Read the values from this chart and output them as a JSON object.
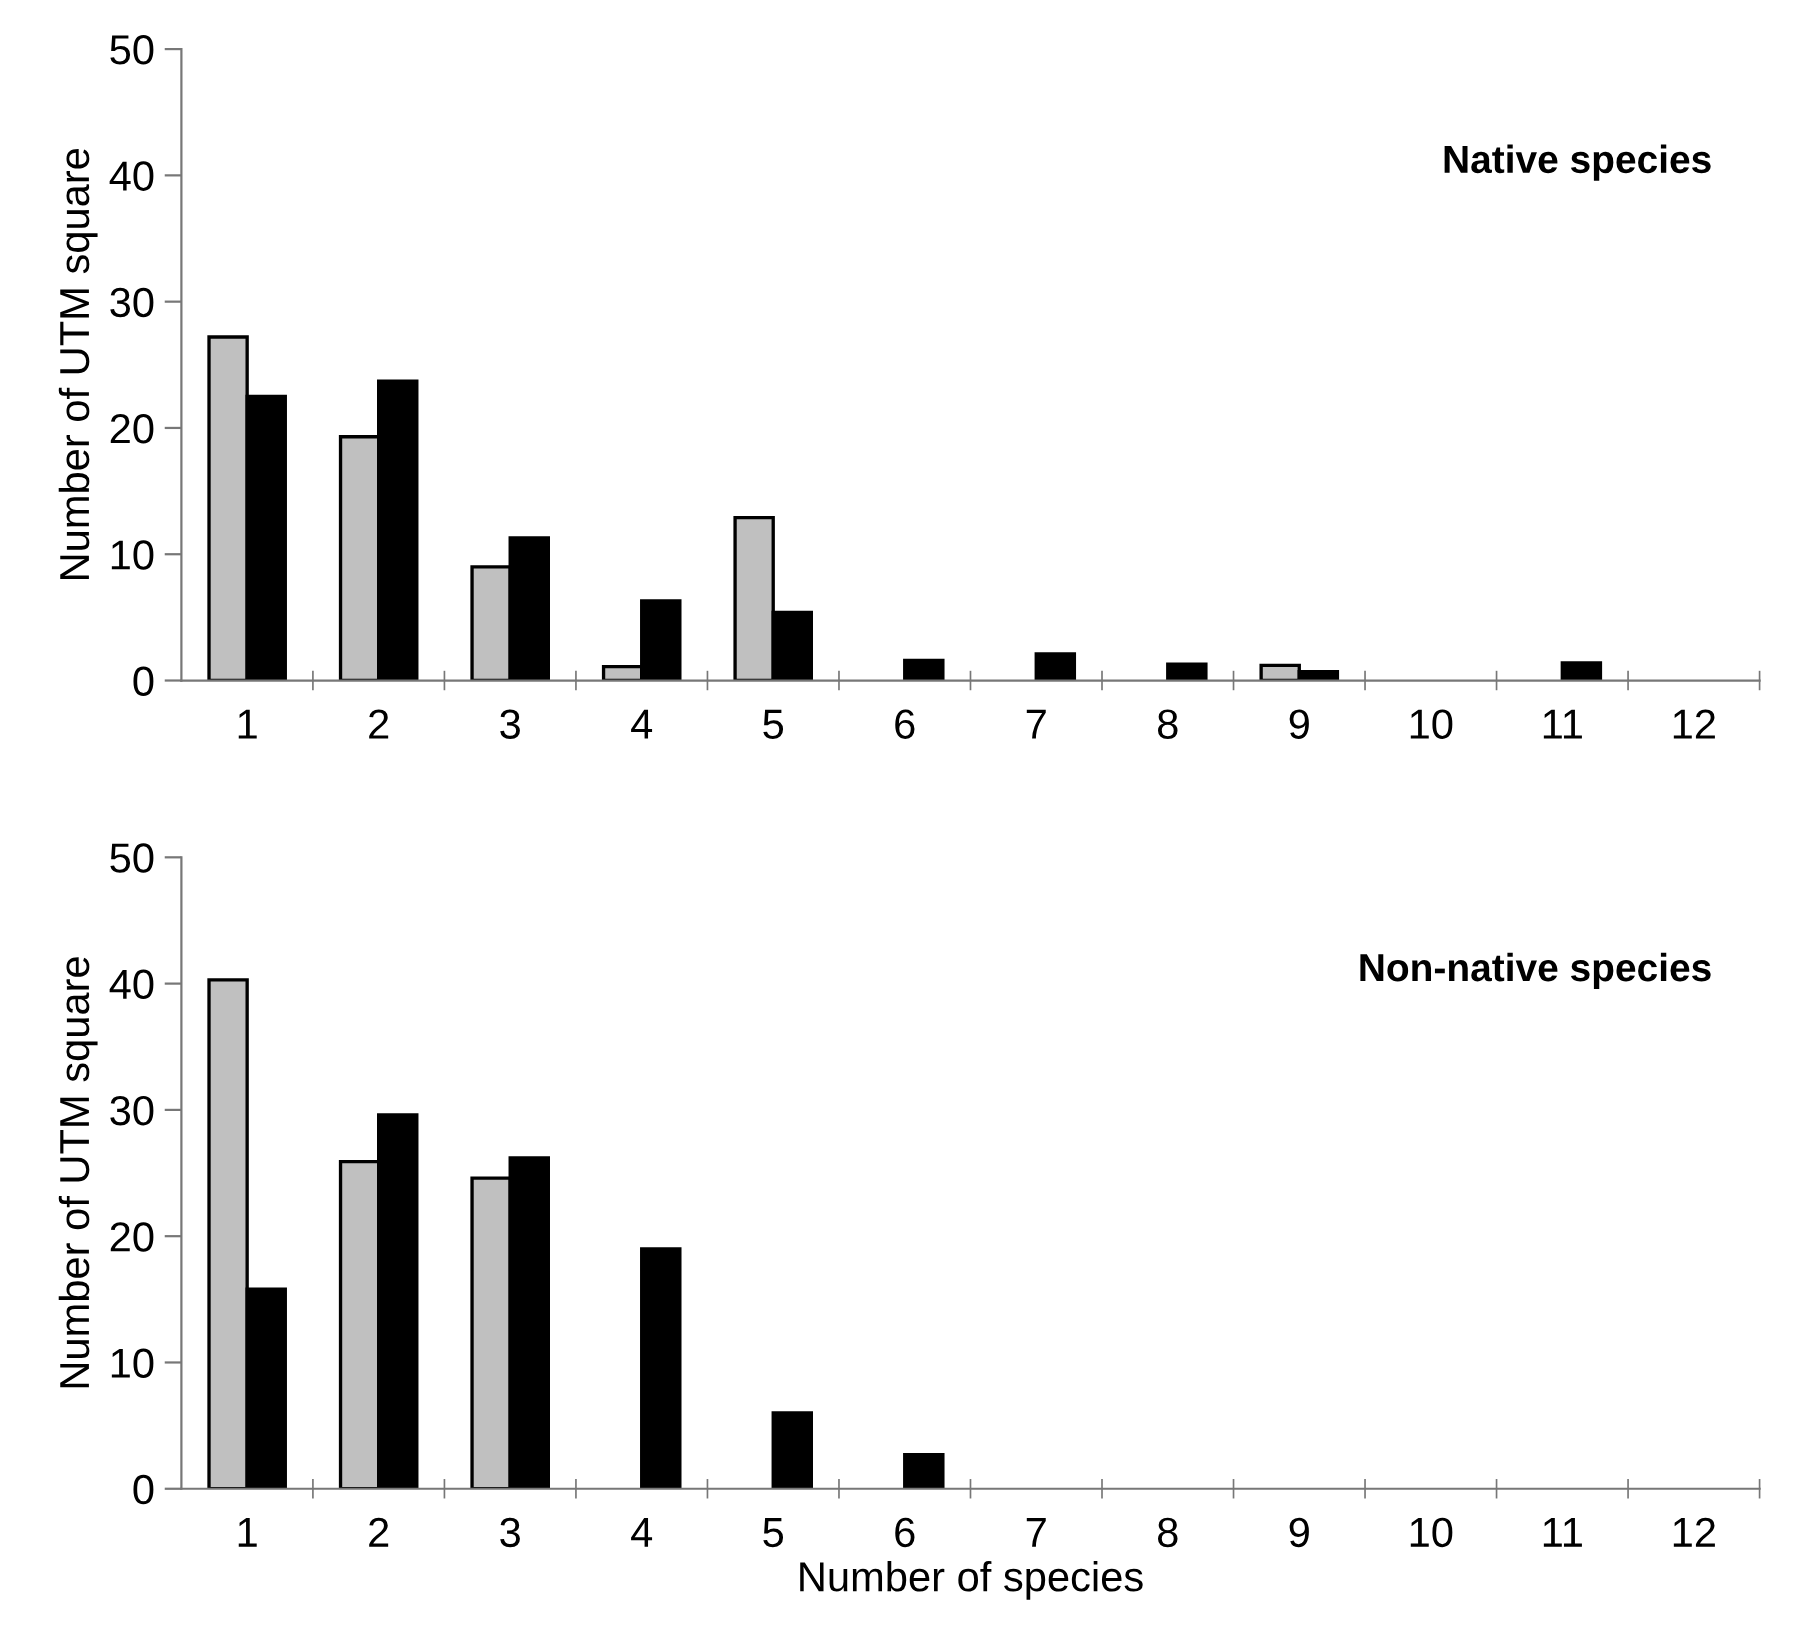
{
  "chart_data": [
    {
      "type": "bar",
      "title": "Native species",
      "ylabel": "Number of UTM square",
      "categories": [
        "1",
        "2",
        "3",
        "4",
        "5",
        "6",
        "7",
        "8",
        "9",
        "10",
        "11",
        "12"
      ],
      "series": [
        {
          "color": "#c0c0c0",
          "values": [
            27.2,
            19.3,
            9.0,
            1.1,
            12.9,
            0,
            0,
            0,
            1.2,
            0,
            0,
            0
          ]
        },
        {
          "color": "#000000",
          "values": [
            22.5,
            23.7,
            11.3,
            6.3,
            5.4,
            1.6,
            2.1,
            1.3,
            0.7,
            0,
            1.4,
            0
          ]
        }
      ],
      "ylim": [
        0,
        50
      ],
      "yticks": [
        0,
        10,
        20,
        30,
        40,
        50
      ],
      "grid": false,
      "legend": false
    },
    {
      "type": "bar",
      "title": "Non-native species",
      "ylabel": "Number of UTM square",
      "xlabel": "Number of species",
      "categories": [
        "1",
        "2",
        "3",
        "4",
        "5",
        "6",
        "7",
        "8",
        "9",
        "10",
        "11",
        "12"
      ],
      "series": [
        {
          "color": "#c0c0c0",
          "values": [
            40.3,
            25.9,
            24.6,
            0,
            0,
            0,
            0,
            0,
            0,
            0,
            0,
            0
          ]
        },
        {
          "color": "#000000",
          "values": [
            15.8,
            29.6,
            26.2,
            19.0,
            6.0,
            2.7,
            0,
            0,
            0,
            0,
            0,
            0
          ]
        }
      ],
      "ylim": [
        0,
        50
      ],
      "yticks": [
        0,
        10,
        20,
        30,
        40,
        50
      ],
      "grid": false,
      "legend": false
    }
  ]
}
